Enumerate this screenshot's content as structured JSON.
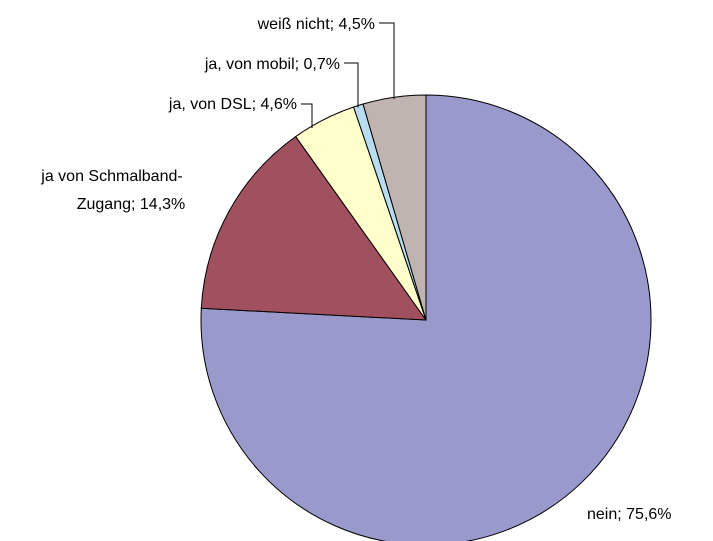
{
  "chart_data": {
    "type": "pie",
    "categories": [
      "nein",
      "ja von Schmalband-Zugang",
      "ja, von DSL",
      "ja, von mobil",
      "weiß nicht"
    ],
    "values": [
      75.6,
      14.3,
      4.6,
      0.7,
      4.5
    ],
    "value_labels": [
      [
        "nein; 75,6%"
      ],
      [
        "ja von Schmalband-",
        "Zugang; 14,3%"
      ],
      [
        "ja, von DSL; 4,6%"
      ],
      [
        "ja, von mobil; 0,7%"
      ],
      [
        "weiß nicht; 4,5%"
      ]
    ],
    "colors": [
      "#9999cc",
      "#a0505e",
      "#ffffcc",
      "#b8dcf0",
      "#c0b4b0"
    ]
  }
}
